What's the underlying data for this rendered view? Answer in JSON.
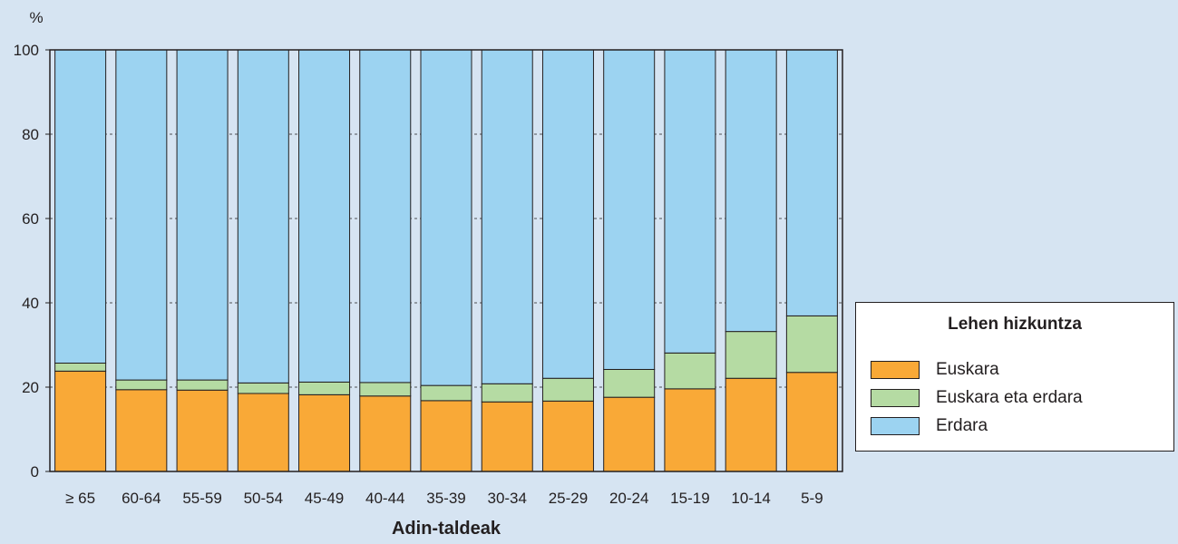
{
  "chart_data": {
    "type": "bar",
    "stacked": true,
    "y_unit_label": "%",
    "xlabel": "Adin-taldeak",
    "ylim": [
      0,
      100
    ],
    "yticks": [
      "0",
      "20",
      "40",
      "60",
      "80",
      "100"
    ],
    "grid": "horizontal dashed",
    "categories": [
      "≥ 65",
      "60-64",
      "55-59",
      "50-54",
      "45-49",
      "40-44",
      "35-39",
      "30-34",
      "25-29",
      "20-24",
      "15-19",
      "10-14",
      "5-9"
    ],
    "series": [
      {
        "name": "Euskara",
        "color": "#f9a937",
        "values": [
          23.8,
          19.4,
          19.3,
          18.5,
          18.2,
          17.9,
          16.8,
          16.5,
          16.7,
          17.6,
          19.6,
          22.1,
          23.5
        ]
      },
      {
        "name": "Euskara eta erdara",
        "color": "#b5dba3",
        "values": [
          1.9,
          2.3,
          2.4,
          2.5,
          3.0,
          3.2,
          3.6,
          4.3,
          5.4,
          6.6,
          8.5,
          11.1,
          13.4
        ]
      },
      {
        "name": "Erdara",
        "color": "#9cd3f1",
        "values": [
          74.3,
          78.3,
          78.3,
          79.0,
          78.8,
          78.9,
          79.6,
          79.2,
          77.9,
          75.8,
          71.9,
          66.8,
          63.1
        ]
      }
    ],
    "legend": {
      "title": "Lehen hizkuntza",
      "position": "right"
    }
  }
}
